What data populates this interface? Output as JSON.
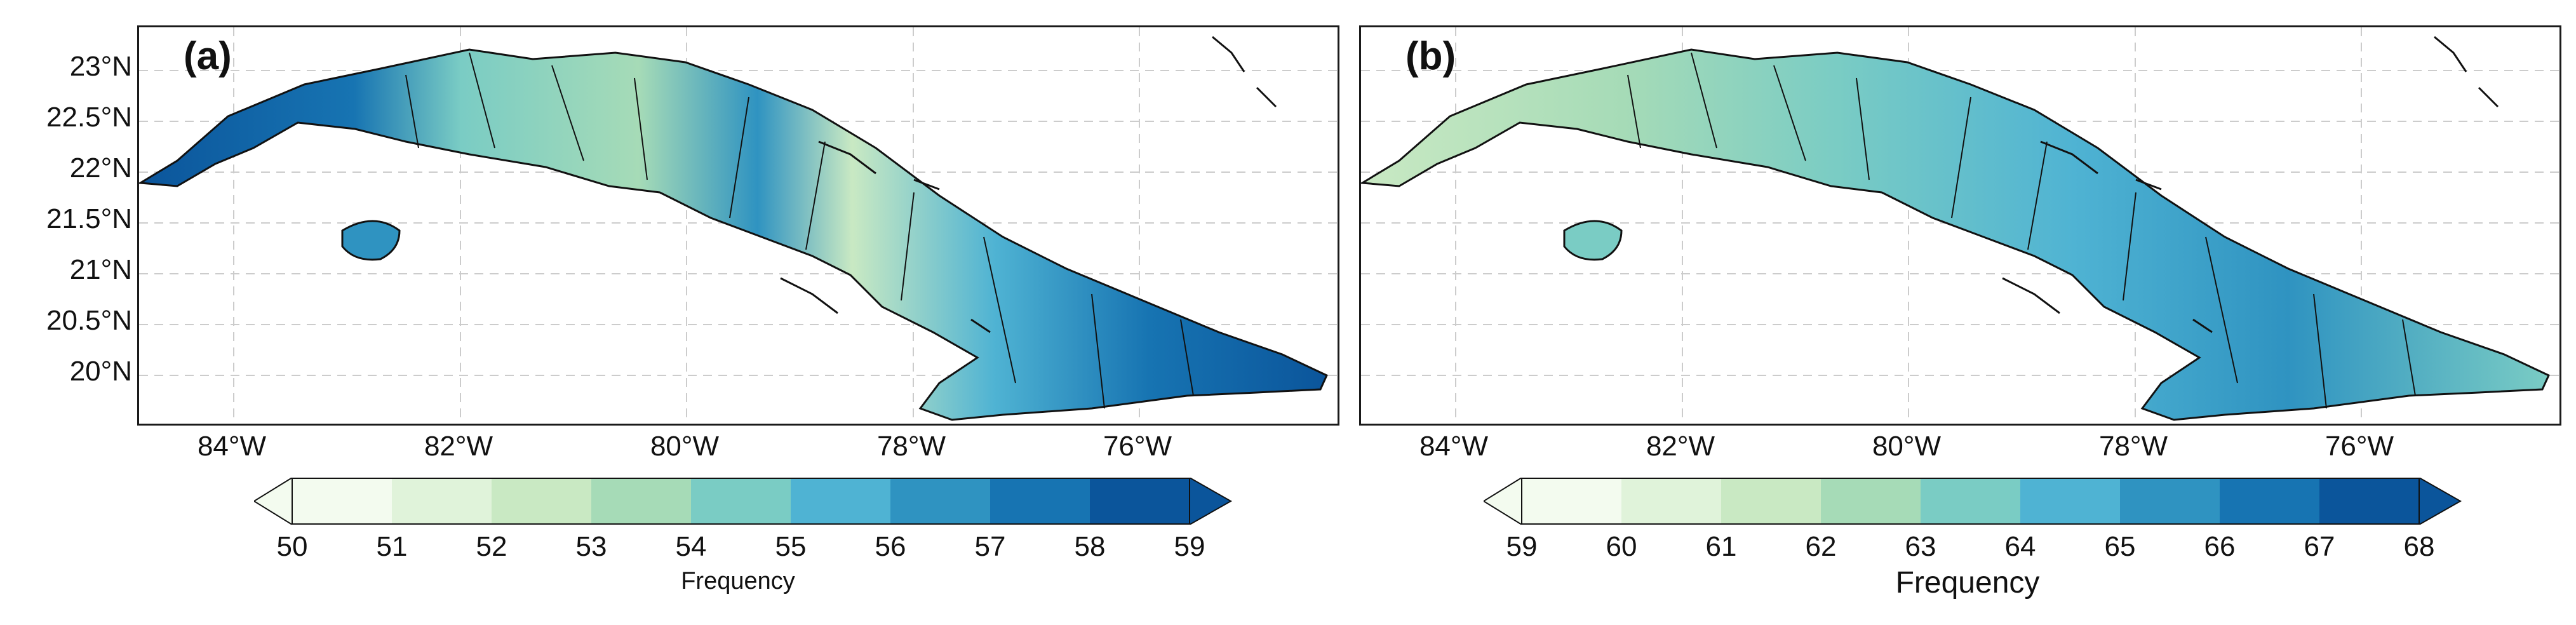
{
  "panels": [
    {
      "label": "(a)"
    },
    {
      "label": "(b)"
    }
  ],
  "y_ticks": [
    "23°N",
    "22.5°N",
    "22°N",
    "21.5°N",
    "21°N",
    "20.5°N",
    "20°N"
  ],
  "x_ticks": [
    "84°W",
    "82°W",
    "80°W",
    "78°W",
    "76°W"
  ],
  "colorbars": [
    {
      "ticks": [
        "50",
        "51",
        "52",
        "53",
        "54",
        "55",
        "56",
        "57",
        "58",
        "59"
      ],
      "label": "Frequency"
    },
    {
      "ticks": [
        "59",
        "60",
        "61",
        "62",
        "63",
        "64",
        "65",
        "66",
        "67",
        "68"
      ],
      "label": "Frequency"
    }
  ],
  "colors": {
    "scale": [
      "#f3fbef",
      "#e0f3da",
      "#c9e9c3",
      "#a6dbb7",
      "#7accc4",
      "#4fb3d3",
      "#2f93c1",
      "#1774b2",
      "#0b559b"
    ],
    "coast": "#111111",
    "grid": "#cccccc"
  }
}
